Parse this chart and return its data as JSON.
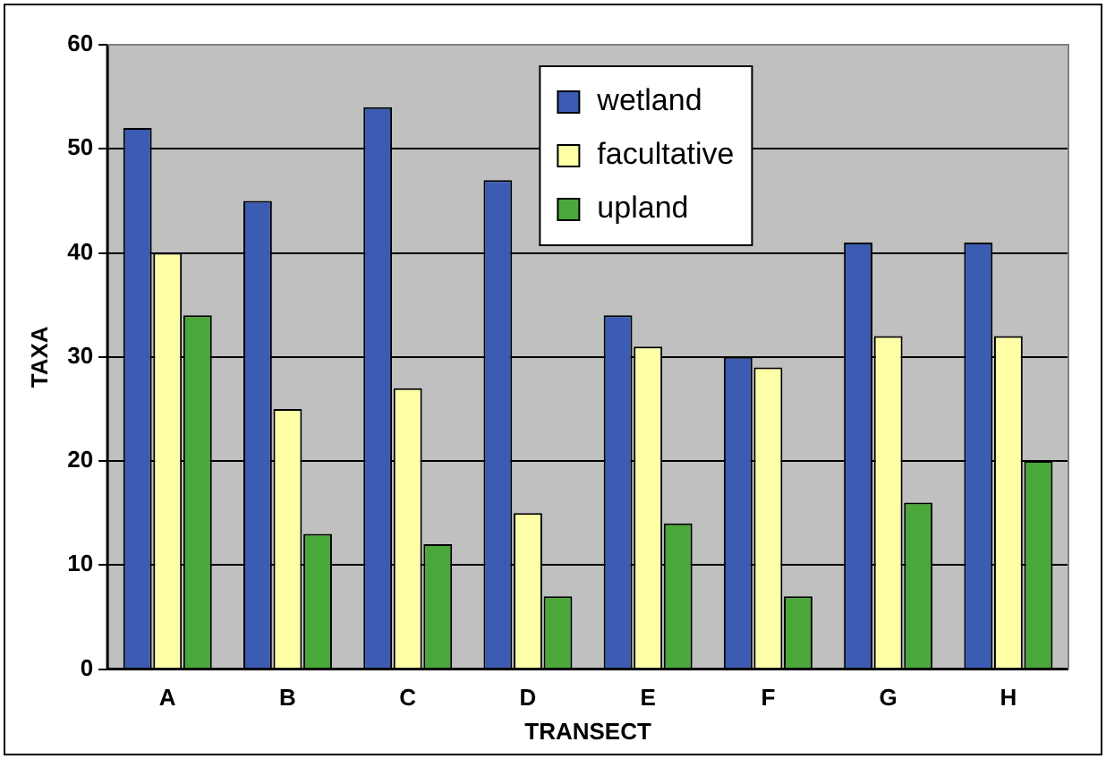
{
  "chart_data": {
    "type": "bar",
    "xlabel": "TRANSECT",
    "ylabel": "TAXA",
    "categories": [
      "A",
      "B",
      "C",
      "D",
      "E",
      "F",
      "G",
      "H"
    ],
    "series": [
      {
        "name": "wetland",
        "color": "#3c5cb4",
        "values": [
          52,
          45,
          54,
          47,
          34,
          30,
          41,
          41
        ]
      },
      {
        "name": "facultative",
        "color": "#ffffa8",
        "values": [
          40,
          25,
          27,
          15,
          31,
          29,
          32,
          32
        ]
      },
      {
        "name": "upland",
        "color": "#4aa83a",
        "values": [
          34,
          13,
          12,
          7,
          14,
          7,
          16,
          20
        ]
      }
    ],
    "ylim": [
      0,
      60
    ],
    "yticks": [
      0,
      10,
      20,
      30,
      40,
      50,
      60
    ],
    "grid": "y",
    "legend": "top right"
  }
}
